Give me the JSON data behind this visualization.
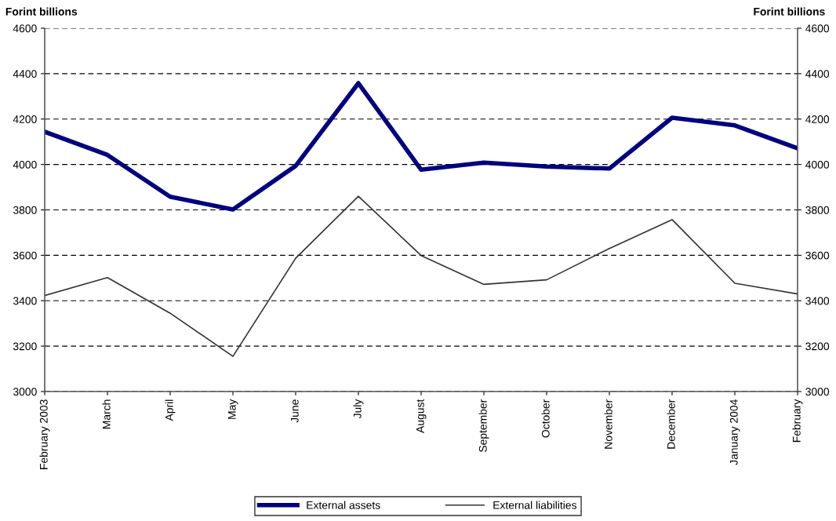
{
  "chart_data": {
    "type": "line",
    "ylabel": "Forint billions",
    "y2label": "Forint billions",
    "categories": [
      "February 2003",
      "March",
      "April",
      "May",
      "June",
      "July",
      "August",
      "September",
      "October",
      "November",
      "December",
      "January 2004",
      "February"
    ],
    "series": [
      {
        "name": "External assets",
        "color": "#000080",
        "values": [
          4144,
          4042,
          3858,
          3802,
          3994,
          4358,
          3977,
          4008,
          3991,
          3982,
          4206,
          4172,
          4071
        ]
      },
      {
        "name": "External liabilities",
        "color": "#333333",
        "values": [
          3423,
          3502,
          3345,
          3155,
          3587,
          3860,
          3599,
          3472,
          3492,
          3630,
          3757,
          3477,
          3430
        ]
      }
    ],
    "ylim": [
      3000,
      4600
    ],
    "yticks": [
      3000,
      3200,
      3400,
      3600,
      3800,
      4000,
      4200,
      4400,
      4600
    ],
    "y2lim": [
      3000,
      4600
    ],
    "y2ticks": [
      3000,
      3200,
      3400,
      3600,
      3800,
      4000,
      4200,
      4400,
      4600
    ],
    "grid": "y",
    "legend": "bottom",
    "marker": "none",
    "line_style": "solid"
  }
}
